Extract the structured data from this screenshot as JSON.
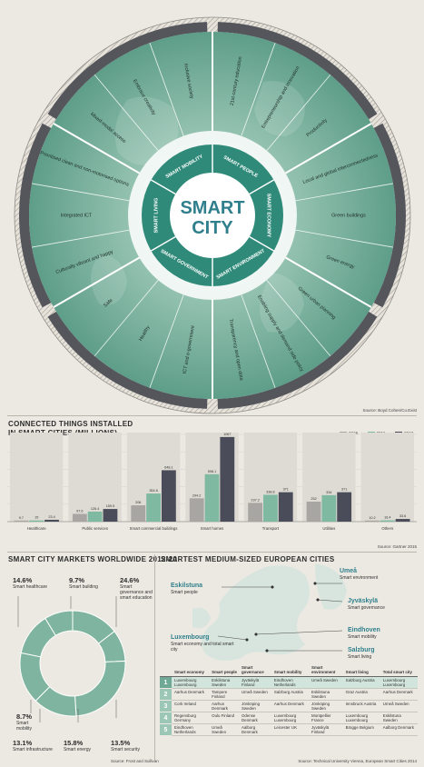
{
  "wheel": {
    "center_line1": "SMART",
    "center_line2": "CITY",
    "dimensions": [
      "SMART PEOPLE",
      "SMART ECONOMY",
      "SMART ENVIRONMENT",
      "SMART GOVERNMENT",
      "SMART LIVING",
      "SMART MOBILITY"
    ],
    "segments": [
      "21st-century education",
      "Entrepreneurship and innovation",
      "Productivity",
      "Local and global interconnectedness",
      "Green buildings",
      "Green energy",
      "Green urban planning",
      "Enabling supply and demand side policy",
      "Transparency and open data",
      "ICT and e-government",
      "Healthy",
      "Safe",
      "Culturally vibrant and happy",
      "Integrated ICT",
      "Prioritised clean and non-motorised options",
      "Mixed-modal access",
      "Embrace creativity",
      "Inclusive society"
    ],
    "source": "Source: Boyd Cohen/Co.Exist"
  },
  "connected": {
    "title_line1": "CONNECTED THINGS INSTALLED",
    "title_line2": "IN SMART CITIES (MILLIONS)",
    "source": "Source: Gartner 2015"
  },
  "markets": {
    "title": "SMART CITY MARKETS WORLDWIDE 2012-20",
    "source": "Source: Frost and Sullivan",
    "items": [
      {
        "pct": "14.6%",
        "label": "Smart healthcare"
      },
      {
        "pct": "9.7%",
        "label": "Smart building"
      },
      {
        "pct": "24.6%",
        "label": "Smart governance and smart education"
      },
      {
        "pct": "13.5%",
        "label": "Smart security"
      },
      {
        "pct": "15.8%",
        "label": "Smart energy"
      },
      {
        "pct": "13.1%",
        "label": "Smart infrastructure"
      },
      {
        "pct": "8.7%",
        "label": "Smart mobility"
      }
    ]
  },
  "cities": {
    "title": "SMARTEST MEDIUM-SIZED EUROPEAN CITIES",
    "source": "Source: Technical University Vienna, European Smart Cities 2014",
    "callouts": [
      {
        "name": "Umeå",
        "desc": "Smart environment"
      },
      {
        "name": "Eskilstuna",
        "desc": "Smart people"
      },
      {
        "name": "Jyväskylä",
        "desc": "Smart governance"
      },
      {
        "name": "Eindhoven",
        "desc": "Smart mobility"
      },
      {
        "name": "Luxembourg",
        "desc": "Smart economy and total smart city"
      },
      {
        "name": "Salzburg",
        "desc": "Smart living"
      }
    ],
    "headers": [
      "Smart economy",
      "Smart people",
      "Smart governance",
      "Smart mobility",
      "Smart environment",
      "Smart living",
      "Total smart city"
    ],
    "rows": [
      [
        "Luxembourg Luxembourg",
        "Eskilstuna Sweden",
        "Jyväskylä Finland",
        "Eindhoven Netherlands",
        "Umeå Sweden",
        "Salzburg Austria",
        "Luxembourg Luxembourg"
      ],
      [
        "Aarhus Denmark",
        "Tampere Finland",
        "Umeå Sweden",
        "Salzburg Austria",
        "Eskilstuna Sweden",
        "Graz Austria",
        "Aarhus Denmark"
      ],
      [
        "Cork Ireland",
        "Aarhus Denmark",
        "Jönköping Sweden",
        "Aarhus Denmark",
        "Jönköping Sweden",
        "Innsbruck Austria",
        "Umeå Sweden"
      ],
      [
        "Regensburg Germany",
        "Oulu Finland",
        "Odense Denmark",
        "Luxembourg Luxembourg",
        "Montpellier France",
        "Luxembourg Luxembourg",
        "Eskilstuna Sweden"
      ],
      [
        "Eindhoven Netherlands",
        "Umeå Sweden",
        "Aalborg Denmark",
        "Leicester UK",
        "Jyväskylä Finland",
        "Brügge Belgium",
        "Aalborg Denmark"
      ]
    ],
    "ranks": [
      "1",
      "2",
      "3",
      "4",
      "5"
    ]
  },
  "colors": {
    "teal": "#2f8a79",
    "wheel_fill": "#7fb5a0",
    "dark_ring": "#55565c",
    "bar_2015": "#a7a6a2",
    "bar_2016": "#7fb9a2",
    "bar_2017": "#4b4c59"
  },
  "chart_data": [
    {
      "type": "bar",
      "title": "CONNECTED THINGS INSTALLED IN SMART CITIES (MILLIONS)",
      "categories": [
        "Healthcare",
        "Public services",
        "Smart commercial buildings",
        "Smart homes",
        "Transport",
        "Utilities",
        "Others"
      ],
      "series": [
        {
          "name": "2015",
          "values": [
            9.7,
            97.6,
            206,
            294.2,
            237.2,
            252,
            10.2
          ]
        },
        {
          "name": "2016",
          "values": [
            15,
            126.4,
            354.6,
            598.1,
            338.8,
            334,
            16.4
          ]
        },
        {
          "name": "2017",
          "values": [
            23.4,
            159.5,
            648.1,
            1067,
            371,
            371,
            33.6
          ]
        }
      ],
      "ylim": [
        0,
        1100
      ],
      "legend": "top-right",
      "grid": true
    },
    {
      "type": "pie",
      "title": "SMART CITY MARKETS WORLDWIDE 2012-20",
      "labels": [
        "Smart healthcare",
        "Smart building",
        "Smart governance and smart education",
        "Smart security",
        "Smart energy",
        "Smart infrastructure",
        "Smart mobility"
      ],
      "values": [
        14.6,
        9.7,
        24.6,
        13.5,
        15.8,
        13.1,
        8.7
      ]
    }
  ]
}
